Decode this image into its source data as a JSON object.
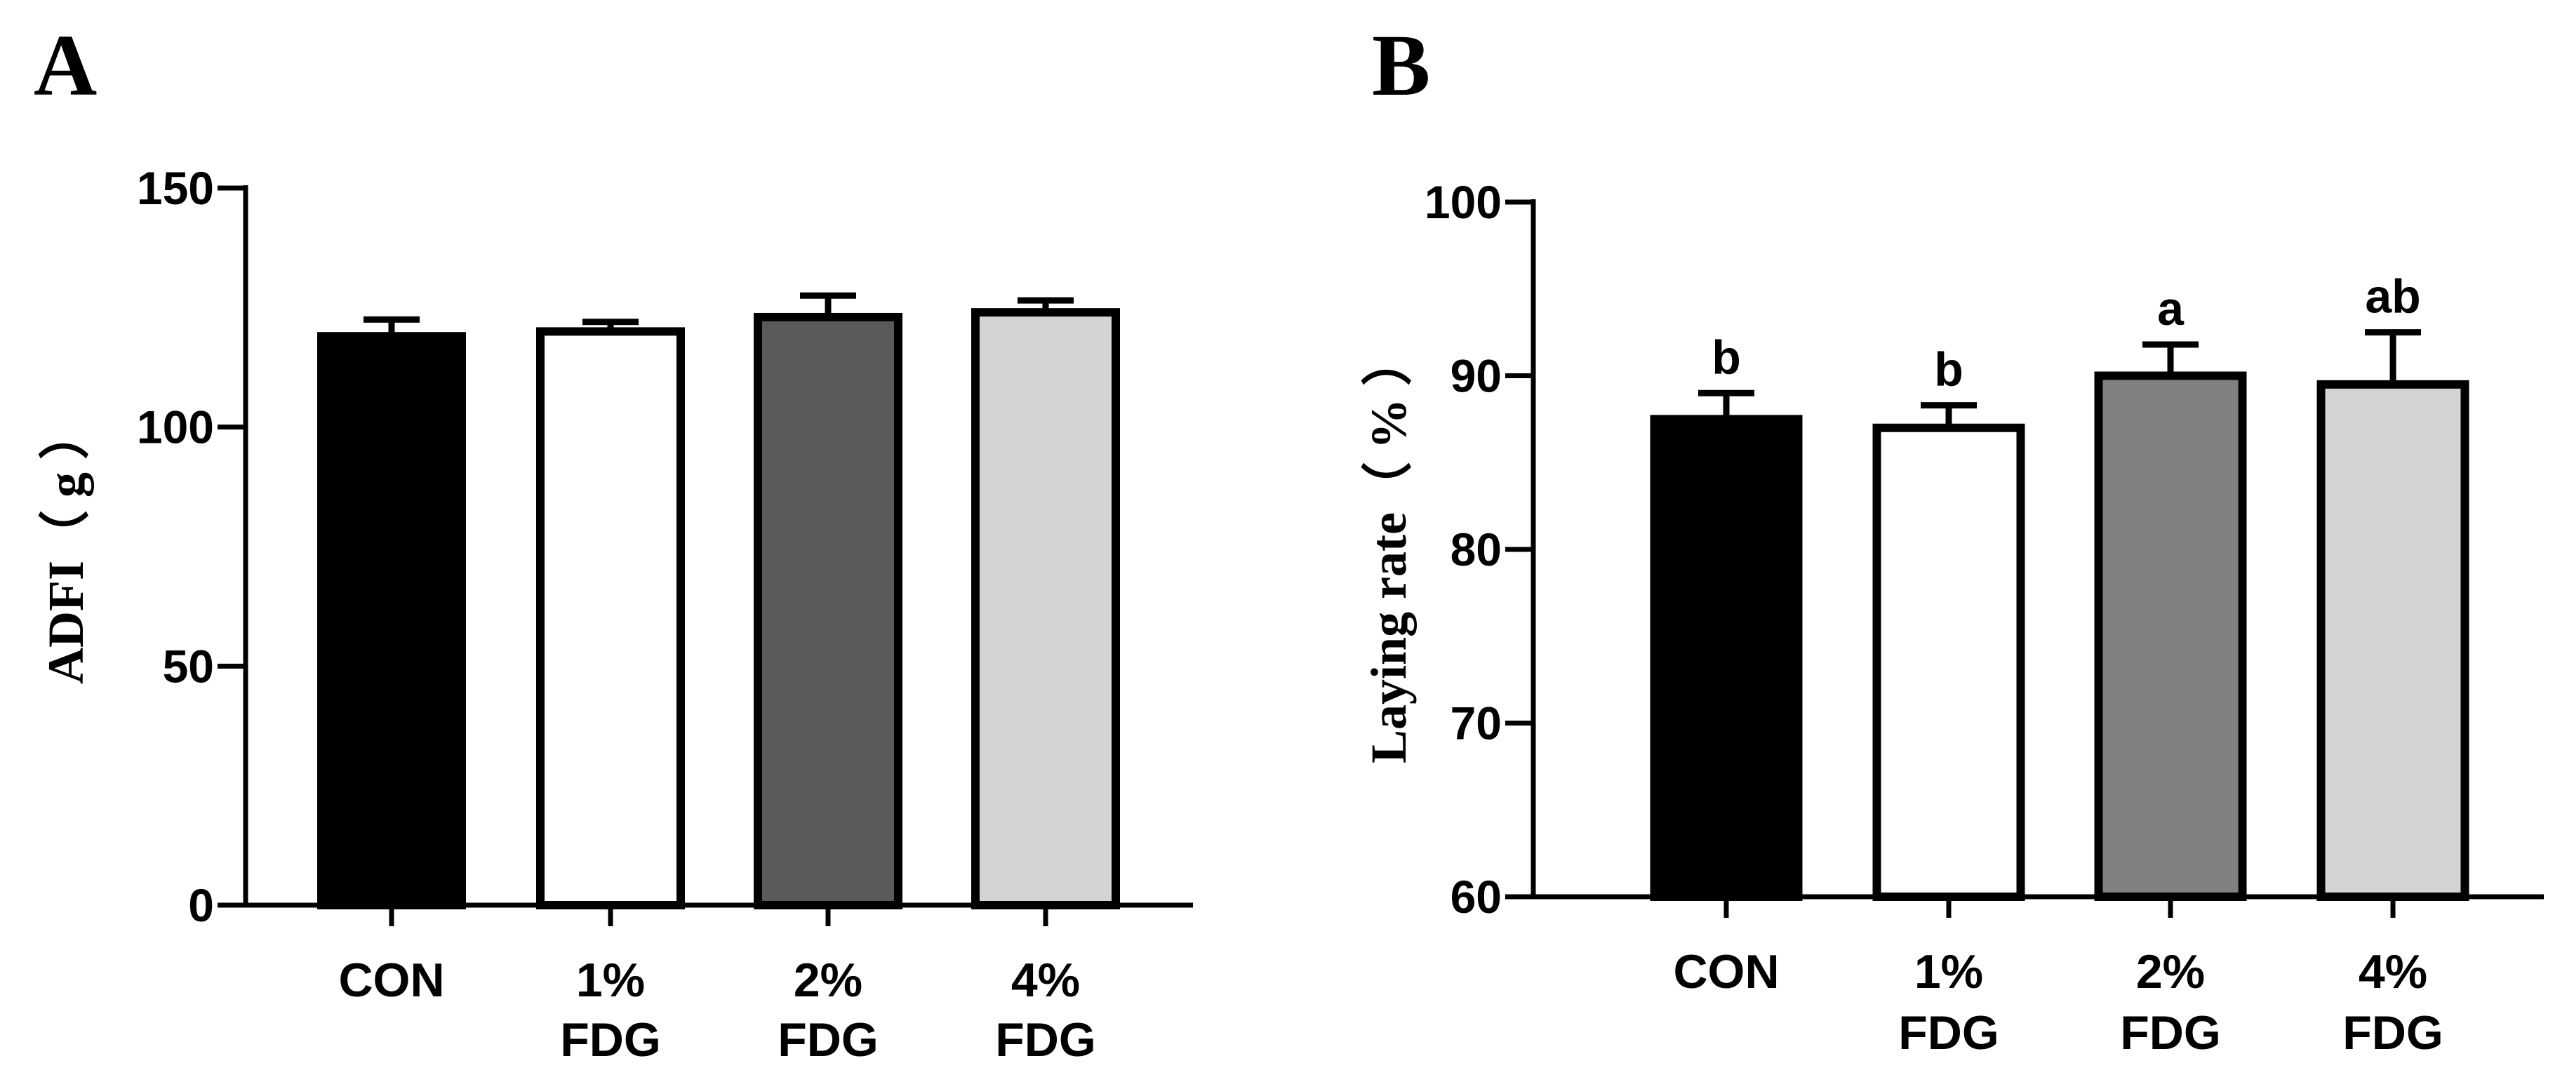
{
  "chart_data": [
    {
      "type": "bar",
      "panel": "A",
      "categories": [
        [
          "CON"
        ],
        [
          "1%",
          "FDG"
        ],
        [
          "2%",
          "FDG"
        ],
        [
          "4%",
          "FDG"
        ]
      ],
      "values": [
        119,
        120,
        123,
        124
      ],
      "errors": [
        3.5,
        2.0,
        4.5,
        2.5
      ],
      "colors": [
        "#000000",
        "#ffffff",
        "#5a5a5a",
        "#d4d4d4"
      ],
      "significance": [],
      "ylabel": "ADFI（ g ）",
      "ylim": [
        0,
        150
      ],
      "yticks": [
        0,
        50,
        100,
        150
      ]
    },
    {
      "type": "bar",
      "panel": "B",
      "categories": [
        [
          "CON"
        ],
        [
          "1%",
          "FDG"
        ],
        [
          "2%",
          "FDG"
        ],
        [
          "4%",
          "FDG"
        ]
      ],
      "values": [
        87.5,
        87.0,
        90.0,
        89.5
      ],
      "errors": [
        1.5,
        1.3,
        1.8,
        3.0
      ],
      "colors": [
        "#000000",
        "#ffffff",
        "#808080",
        "#d4d4d4"
      ],
      "significance": [
        "b",
        "b",
        "a",
        "ab"
      ],
      "ylabel": "Laying rate（ % ）",
      "ylim": [
        60,
        100
      ],
      "yticks": [
        60,
        70,
        80,
        90,
        100
      ]
    }
  ]
}
